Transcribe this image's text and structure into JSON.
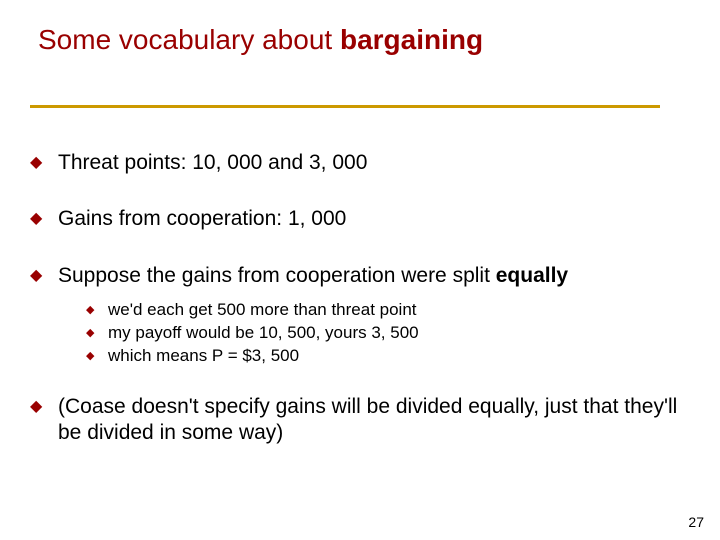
{
  "slide": {
    "title_plain": "Some vocabulary about ",
    "title_bold": "bargaining",
    "bullets": [
      {
        "text": "Threat points: 10, 000 and 3, 000",
        "sub": []
      },
      {
        "text": "Gains from cooperation: 1, 000",
        "sub": []
      },
      {
        "text_prefix": "Suppose the gains from cooperation were split ",
        "text_bold": "equally",
        "sub": [
          "we'd each get 500 more than threat point",
          "my payoff would be 10, 500, yours 3, 500",
          "which means P = $3, 500"
        ]
      },
      {
        "text": "(Coase doesn't specify gains will be divided equally, just that they'll be divided in some way)",
        "sub": []
      }
    ],
    "page_number": "27",
    "colors": {
      "title": "#990000",
      "underline": "#cc9900",
      "bullet_marker": "#990000",
      "text": "#000000",
      "background": "#ffffff"
    }
  }
}
